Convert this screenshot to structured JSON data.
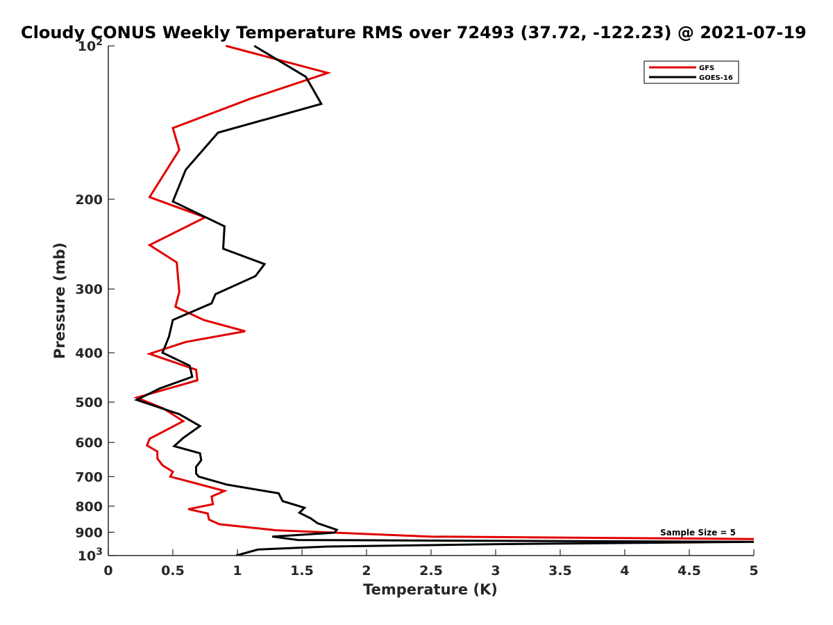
{
  "chart_data": {
    "type": "line",
    "title": "Cloudy CONUS Weekly Temperature RMS over 72493 (37.72, -122.23) @ 2021-07-19",
    "xlabel": "Temperature (K)",
    "ylabel": "Pressure (mb)",
    "xlim": [
      0,
      5
    ],
    "ylim": [
      100,
      1000
    ],
    "y_scale": "log",
    "y_reversed": true,
    "grid": false,
    "legend_position": "top-right",
    "x_ticks": [
      {
        "value": 0,
        "label": "0"
      },
      {
        "value": 0.5,
        "label": "0.5"
      },
      {
        "value": 1,
        "label": "1"
      },
      {
        "value": 1.5,
        "label": "1.5"
      },
      {
        "value": 2,
        "label": "2"
      },
      {
        "value": 2.5,
        "label": "2.5"
      },
      {
        "value": 3,
        "label": "3"
      },
      {
        "value": 3.5,
        "label": "3.5"
      },
      {
        "value": 4,
        "label": "4"
      },
      {
        "value": 4.5,
        "label": "4.5"
      },
      {
        "value": 5,
        "label": "5"
      }
    ],
    "y_ticks": [
      {
        "value": 100,
        "label": "10",
        "sup": "2"
      },
      {
        "value": 200,
        "label": "200",
        "sup": ""
      },
      {
        "value": 300,
        "label": "300",
        "sup": ""
      },
      {
        "value": 400,
        "label": "400",
        "sup": ""
      },
      {
        "value": 500,
        "label": "500",
        "sup": ""
      },
      {
        "value": 600,
        "label": "600",
        "sup": ""
      },
      {
        "value": 700,
        "label": "700",
        "sup": ""
      },
      {
        "value": 800,
        "label": "800",
        "sup": ""
      },
      {
        "value": 900,
        "label": "900",
        "sup": ""
      },
      {
        "value": 1000,
        "label": "10",
        "sup": "3"
      }
    ],
    "annotation": "Sample Size = 5",
    "series": [
      {
        "name": "GFS",
        "color": "#e00000",
        "points": [
          [
            0.91,
            100
          ],
          [
            1.7,
            113
          ],
          [
            1.1,
            127
          ],
          [
            0.5,
            145
          ],
          [
            0.55,
            160
          ],
          [
            0.32,
            198
          ],
          [
            0.75,
            217
          ],
          [
            0.32,
            246
          ],
          [
            0.53,
            266
          ],
          [
            0.55,
            304
          ],
          [
            0.52,
            325
          ],
          [
            0.74,
            345
          ],
          [
            1.06,
            363
          ],
          [
            0.6,
            381
          ],
          [
            0.32,
            402
          ],
          [
            0.68,
            432
          ],
          [
            0.69,
            453
          ],
          [
            0.22,
            490
          ],
          [
            0.43,
            515
          ],
          [
            0.58,
            545
          ],
          [
            0.32,
            590
          ],
          [
            0.3,
            608
          ],
          [
            0.38,
            625
          ],
          [
            0.38,
            645
          ],
          [
            0.42,
            665
          ],
          [
            0.5,
            685
          ],
          [
            0.48,
            700
          ],
          [
            0.9,
            747
          ],
          [
            0.8,
            766
          ],
          [
            0.81,
            793
          ],
          [
            0.62,
            811
          ],
          [
            0.77,
            827
          ],
          [
            0.78,
            850
          ],
          [
            0.86,
            868
          ],
          [
            1.3,
            892
          ],
          [
            2.5,
            918
          ],
          [
            5.0,
            928
          ]
        ]
      },
      {
        "name": "GOES-16",
        "color": "#000000",
        "points": [
          [
            1.13,
            100
          ],
          [
            1.53,
            115
          ],
          [
            1.65,
            130
          ],
          [
            0.85,
            148
          ],
          [
            0.6,
            175
          ],
          [
            0.5,
            202
          ],
          [
            0.9,
            226
          ],
          [
            0.89,
            250
          ],
          [
            1.21,
            268
          ],
          [
            1.14,
            283
          ],
          [
            0.83,
            307
          ],
          [
            0.8,
            320
          ],
          [
            0.5,
            345
          ],
          [
            0.47,
            372
          ],
          [
            0.42,
            400
          ],
          [
            0.63,
            424
          ],
          [
            0.65,
            446
          ],
          [
            0.4,
            470
          ],
          [
            0.22,
            495
          ],
          [
            0.55,
            528
          ],
          [
            0.71,
            557
          ],
          [
            0.58,
            588
          ],
          [
            0.51,
            610
          ],
          [
            0.71,
            630
          ],
          [
            0.72,
            650
          ],
          [
            0.68,
            670
          ],
          [
            0.68,
            690
          ],
          [
            0.7,
            700
          ],
          [
            0.92,
            726
          ],
          [
            1.32,
            755
          ],
          [
            1.35,
            782
          ],
          [
            1.52,
            806
          ],
          [
            1.48,
            824
          ],
          [
            1.57,
            846
          ],
          [
            1.62,
            864
          ],
          [
            1.77,
            890
          ],
          [
            1.75,
            902
          ],
          [
            1.27,
            918
          ],
          [
            1.47,
            932
          ],
          [
            5.0,
            940
          ],
          [
            3.0,
            950
          ],
          [
            1.7,
            960
          ],
          [
            1.16,
            973
          ],
          [
            0.99,
            1000
          ]
        ]
      }
    ]
  }
}
